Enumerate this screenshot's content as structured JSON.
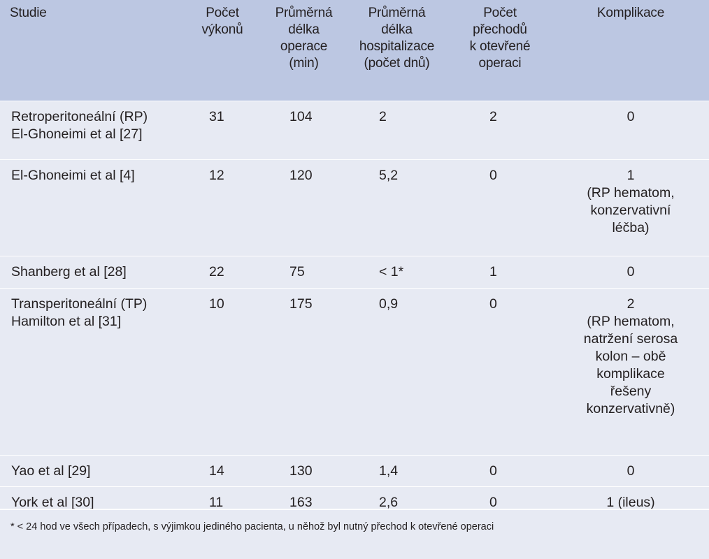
{
  "table": {
    "headers": [
      "Studie",
      "Počet\nvýkonů",
      "Průměrná\ndélka\noperace\n(min)",
      "Průměrná\ndélka\nhospitalizace\n(počet dnů)",
      "Počet\npřechodů\nk otevřené\noperaci",
      "Komplikace"
    ],
    "rows": [
      {
        "study": "Retroperitoneální (RP)\nEl-Ghoneimi et al [27]",
        "procedures": "31",
        "operation_time": "104",
        "hospital_stay": "2",
        "conversions": "2",
        "complications": "0"
      },
      {
        "study": "El-Ghoneimi et al [4]",
        "procedures": "12",
        "operation_time": "120",
        "hospital_stay": "5,2",
        "conversions": "0",
        "complications": "1\n(RP hematom,\nkonzervativní\nléčba)"
      },
      {
        "study": "Shanberg et al [28]",
        "procedures": "22",
        "operation_time": "75",
        "hospital_stay": "< 1*",
        "conversions": "1",
        "complications": "0"
      },
      {
        "study": "Transperitoneální (TP)\nHamilton et al [31]",
        "procedures": "10",
        "operation_time": "175",
        "hospital_stay": "0,9",
        "conversions": "0",
        "complications": "2\n(RP hematom,\nnatržení serosa\nkolon – obě\nkomplikace\nřešeny\nkonzervativně)"
      },
      {
        "study": "Yao et al [29]",
        "procedures": "14",
        "operation_time": "130",
        "hospital_stay": "1,4",
        "conversions": "0",
        "complications": "0"
      },
      {
        "study": "York et al [30]",
        "procedures": "11",
        "operation_time": "163",
        "hospital_stay": "2,6",
        "conversions": "0",
        "complications": "1 (ileus)"
      }
    ]
  },
  "footnote": "* < 24 hod ve všech případech, s výjimkou jediného pacienta, u něhož byl nutný přechod k otevřené operaci",
  "colors": {
    "header_bg": "#bcc7e2",
    "body_bg": "#e7eaf3",
    "row_divider": "#ffffff",
    "text": "#231f20"
  }
}
